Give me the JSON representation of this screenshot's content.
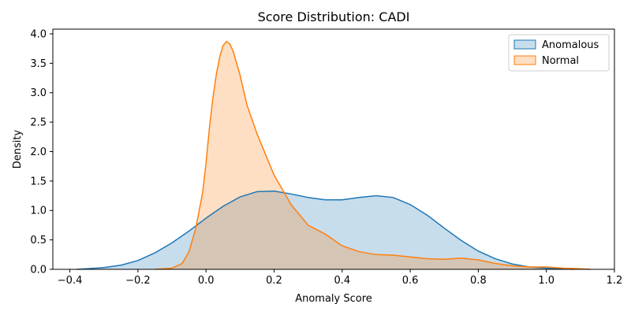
{
  "chart_data": {
    "type": "area",
    "title": "Score Distribution: CADI",
    "xlabel": "Anomaly Score",
    "ylabel": "Density",
    "xlim": [
      -0.45,
      1.2
    ],
    "ylim": [
      0,
      4.08
    ],
    "xticks": [
      -0.4,
      -0.2,
      0.0,
      0.2,
      0.4,
      0.6,
      0.8,
      1.0,
      1.2
    ],
    "xtick_labels": [
      "−0.4",
      "−0.2",
      "0.0",
      "0.2",
      "0.4",
      "0.6",
      "0.8",
      "1.0",
      "1.2"
    ],
    "yticks": [
      0.0,
      0.5,
      1.0,
      1.5,
      2.0,
      2.5,
      3.0,
      3.5,
      4.0
    ],
    "ytick_labels": [
      "0.0",
      "0.5",
      "1.0",
      "1.5",
      "2.0",
      "2.5",
      "3.0",
      "3.5",
      "4.0"
    ],
    "grid": false,
    "legend_position": "top-right",
    "series": [
      {
        "name": "Anomalous",
        "color": "#1f77b4",
        "points": [
          [
            -0.38,
            0.0
          ],
          [
            -0.35,
            0.01
          ],
          [
            -0.3,
            0.03
          ],
          [
            -0.25,
            0.07
          ],
          [
            -0.2,
            0.15
          ],
          [
            -0.15,
            0.28
          ],
          [
            -0.1,
            0.45
          ],
          [
            -0.05,
            0.65
          ],
          [
            0.0,
            0.87
          ],
          [
            0.05,
            1.07
          ],
          [
            0.1,
            1.23
          ],
          [
            0.15,
            1.32
          ],
          [
            0.2,
            1.33
          ],
          [
            0.25,
            1.28
          ],
          [
            0.3,
            1.22
          ],
          [
            0.35,
            1.18
          ],
          [
            0.4,
            1.18
          ],
          [
            0.45,
            1.22
          ],
          [
            0.5,
            1.25
          ],
          [
            0.55,
            1.22
          ],
          [
            0.6,
            1.1
          ],
          [
            0.65,
            0.92
          ],
          [
            0.7,
            0.7
          ],
          [
            0.75,
            0.49
          ],
          [
            0.8,
            0.31
          ],
          [
            0.85,
            0.18
          ],
          [
            0.9,
            0.09
          ],
          [
            0.95,
            0.04
          ],
          [
            1.0,
            0.02
          ],
          [
            1.05,
            0.01
          ],
          [
            1.08,
            0.0
          ]
        ]
      },
      {
        "name": "Normal",
        "color": "#ff7f0e",
        "points": [
          [
            -0.15,
            0.0
          ],
          [
            -0.1,
            0.02
          ],
          [
            -0.07,
            0.1
          ],
          [
            -0.05,
            0.3
          ],
          [
            -0.03,
            0.7
          ],
          [
            -0.01,
            1.3
          ],
          [
            0.0,
            1.8
          ],
          [
            0.01,
            2.4
          ],
          [
            0.02,
            2.9
          ],
          [
            0.03,
            3.3
          ],
          [
            0.04,
            3.6
          ],
          [
            0.05,
            3.8
          ],
          [
            0.06,
            3.87
          ],
          [
            0.07,
            3.83
          ],
          [
            0.08,
            3.7
          ],
          [
            0.1,
            3.3
          ],
          [
            0.12,
            2.8
          ],
          [
            0.15,
            2.3
          ],
          [
            0.2,
            1.6
          ],
          [
            0.25,
            1.1
          ],
          [
            0.3,
            0.75
          ],
          [
            0.35,
            0.6
          ],
          [
            0.4,
            0.4
          ],
          [
            0.45,
            0.3
          ],
          [
            0.5,
            0.25
          ],
          [
            0.55,
            0.24
          ],
          [
            0.6,
            0.21
          ],
          [
            0.65,
            0.18
          ],
          [
            0.7,
            0.17
          ],
          [
            0.75,
            0.19
          ],
          [
            0.8,
            0.16
          ],
          [
            0.85,
            0.1
          ],
          [
            0.9,
            0.06
          ],
          [
            0.95,
            0.04
          ],
          [
            1.0,
            0.04
          ],
          [
            1.05,
            0.02
          ],
          [
            1.1,
            0.01
          ],
          [
            1.13,
            0.0
          ]
        ]
      }
    ]
  }
}
